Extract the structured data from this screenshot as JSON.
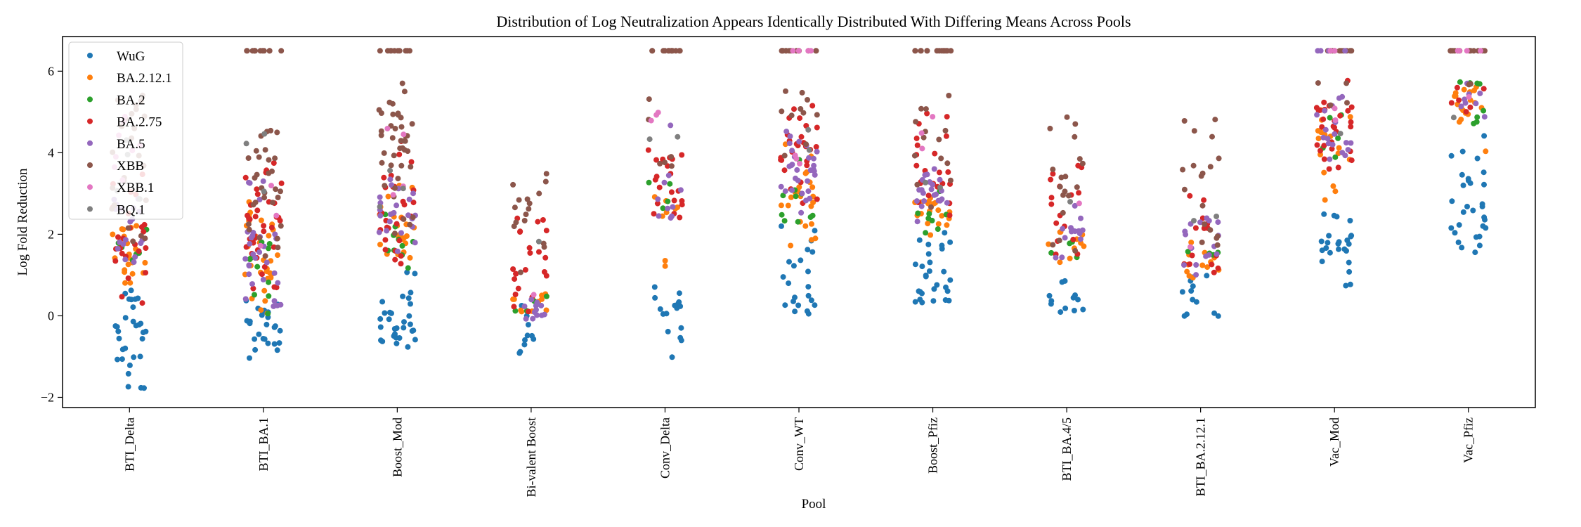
{
  "chart_data": {
    "type": "scatter",
    "title": "Distribution of Log Neutralization Appears Identically Distributed With Differing Means Across Pools",
    "xlabel": "Pool",
    "ylabel": "Log Fold Reduction",
    "ylim": [
      -2.25,
      6.85
    ],
    "yticks": [
      -2,
      0,
      2,
      4,
      6
    ],
    "ytick_labels": [
      "−2",
      "0",
      "2",
      "4",
      "6"
    ],
    "categories": [
      "BTI_Delta",
      "BTI_BA.1",
      "Boost_Mod",
      "Bi-valent Boost",
      "Conv_Delta",
      "Conv_WT",
      "Boost_Pfiz",
      "BTI_BA.4/5",
      "BTI_BA.2.12.1",
      "Vac_Mod",
      "Vac_Pfiz"
    ],
    "legend_position": "top-left",
    "grid": false,
    "series": [
      {
        "name": "WuG",
        "color": "#1f77b4",
        "groups": [
          {
            "mean": -0.3,
            "sd": 0.8,
            "n": 30,
            "min": -1.85,
            "max": 0.8
          },
          {
            "mean": -0.3,
            "sd": 0.45,
            "n": 25,
            "min": -1.1,
            "max": 0.4
          },
          {
            "mean": 0.1,
            "sd": 0.55,
            "n": 30,
            "min": -0.9,
            "max": 1.1
          },
          {
            "mean": -0.6,
            "sd": 0.5,
            "n": 10,
            "min": -1.5,
            "max": 0.3
          },
          {
            "mean": 0.1,
            "sd": 0.5,
            "n": 16,
            "min": -1.05,
            "max": 1.2
          },
          {
            "mean": 0.9,
            "sd": 0.8,
            "n": 22,
            "min": -0.05,
            "max": 2.4
          },
          {
            "mean": 1.0,
            "sd": 0.6,
            "n": 28,
            "min": 0.3,
            "max": 2.2
          },
          {
            "mean": 0.6,
            "sd": 0.4,
            "n": 12,
            "min": -0.05,
            "max": 1.2
          },
          {
            "mean": 0.4,
            "sd": 0.4,
            "n": 12,
            "min": -0.1,
            "max": 1.0
          },
          {
            "mean": 1.6,
            "sd": 0.55,
            "n": 24,
            "min": 0.65,
            "max": 3.3
          },
          {
            "mean": 2.7,
            "sd": 0.8,
            "n": 30,
            "min": 1.55,
            "max": 4.6
          }
        ]
      },
      {
        "name": "BA.2.12.1",
        "color": "#ff7f0e",
        "groups": [
          {
            "mean": 1.5,
            "sd": 0.5,
            "n": 22,
            "min": 0.6,
            "max": 2.6
          },
          {
            "mean": 1.3,
            "sd": 0.8,
            "n": 30,
            "min": 0.0,
            "max": 3.0
          },
          {
            "mean": 2.3,
            "sd": 0.5,
            "n": 22,
            "min": 1.4,
            "max": 3.3
          },
          {
            "mean": 0.4,
            "sd": 0.4,
            "n": 10,
            "min": -0.3,
            "max": 1.2
          },
          {
            "mean": 2.6,
            "sd": 0.5,
            "n": 8,
            "min": 1.2,
            "max": 3.3
          },
          {
            "mean": 2.8,
            "sd": 0.7,
            "n": 22,
            "min": 1.7,
            "max": 4.5
          },
          {
            "mean": 2.4,
            "sd": 0.4,
            "n": 18,
            "min": 1.7,
            "max": 3.3
          },
          {
            "mean": 1.6,
            "sd": 0.3,
            "n": 10,
            "min": 1.1,
            "max": 2.2
          },
          {
            "mean": 1.3,
            "sd": 0.4,
            "n": 12,
            "min": 0.9,
            "max": 2.1
          },
          {
            "mean": 4.0,
            "sd": 0.7,
            "n": 16,
            "min": 2.8,
            "max": 5.2
          },
          {
            "mean": 5.2,
            "sd": 0.4,
            "n": 18,
            "min": 4.0,
            "max": 5.7
          }
        ]
      },
      {
        "name": "BA.2",
        "color": "#2ca02c",
        "groups": [
          {
            "mean": 1.5,
            "sd": 0.5,
            "n": 6,
            "min": 0.8,
            "max": 2.3
          },
          {
            "mean": 1.0,
            "sd": 0.8,
            "n": 10,
            "min": 0.0,
            "max": 2.8
          },
          {
            "mean": 2.0,
            "sd": 0.5,
            "n": 10,
            "min": 1.0,
            "max": 2.8
          },
          {
            "mean": 0.3,
            "sd": 0.2,
            "n": 4,
            "min": 0.1,
            "max": 0.5
          },
          {
            "mean": 3.0,
            "sd": 0.3,
            "n": 4,
            "min": 2.6,
            "max": 3.3
          },
          {
            "mean": 3.0,
            "sd": 0.8,
            "n": 10,
            "min": 2.2,
            "max": 5.75
          },
          {
            "mean": 2.5,
            "sd": 0.4,
            "n": 8,
            "min": 2.0,
            "max": 3.2
          },
          {
            "mean": 1.7,
            "sd": 0.3,
            "n": 4,
            "min": 1.4,
            "max": 2.0
          },
          {
            "mean": 1.3,
            "sd": 0.3,
            "n": 4,
            "min": 1.2,
            "max": 1.6
          },
          {
            "mean": 4.3,
            "sd": 0.5,
            "n": 5,
            "min": 3.7,
            "max": 5.0
          },
          {
            "mean": 5.3,
            "sd": 0.4,
            "n": 8,
            "min": 4.6,
            "max": 5.75
          }
        ]
      },
      {
        "name": "BA.2.75",
        "color": "#d62728",
        "groups": [
          {
            "mean": 1.6,
            "sd": 0.8,
            "n": 24,
            "min": 0.3,
            "max": 3.5
          },
          {
            "mean": 2.0,
            "sd": 1.0,
            "n": 35,
            "min": 0.3,
            "max": 4.0
          },
          {
            "mean": 2.5,
            "sd": 0.8,
            "n": 30,
            "min": 1.2,
            "max": 4.8
          },
          {
            "mean": 1.4,
            "sd": 0.8,
            "n": 22,
            "min": 0.0,
            "max": 3.0
          },
          {
            "mean": 3.3,
            "sd": 0.8,
            "n": 20,
            "min": 2.4,
            "max": 4.1
          },
          {
            "mean": 4.0,
            "sd": 0.8,
            "n": 26,
            "min": 2.2,
            "max": 5.5
          },
          {
            "mean": 3.5,
            "sd": 0.8,
            "n": 22,
            "min": 2.0,
            "max": 5.2
          },
          {
            "mean": 2.6,
            "sd": 0.9,
            "n": 16,
            "min": 1.3,
            "max": 4.4
          },
          {
            "mean": 2.3,
            "sd": 1.0,
            "n": 14,
            "min": 1.0,
            "max": 4.3
          },
          {
            "mean": 4.8,
            "sd": 0.6,
            "n": 28,
            "min": 3.5,
            "max": 5.8
          },
          {
            "mean": 5.4,
            "sd": 0.3,
            "n": 6,
            "min": 4.5,
            "max": 5.7
          }
        ]
      },
      {
        "name": "BA.5",
        "color": "#9467bd",
        "groups": [
          {
            "mean": 2.0,
            "sd": 0.6,
            "n": 18,
            "min": 0.8,
            "max": 3.0
          },
          {
            "mean": 1.8,
            "sd": 0.9,
            "n": 30,
            "min": 0.2,
            "max": 4.3
          },
          {
            "mean": 2.4,
            "sd": 0.5,
            "n": 22,
            "min": 1.5,
            "max": 3.5
          },
          {
            "mean": 0.3,
            "sd": 0.3,
            "n": 12,
            "min": -0.1,
            "max": 0.8
          },
          {
            "mean": 3.0,
            "sd": 0.7,
            "n": 10,
            "min": 2.4,
            "max": 5.1
          },
          {
            "mean": 3.4,
            "sd": 0.5,
            "n": 30,
            "min": 2.2,
            "max": 4.6
          },
          {
            "mean": 3.0,
            "sd": 0.4,
            "n": 22,
            "min": 2.2,
            "max": 4.0
          },
          {
            "mean": 1.9,
            "sd": 0.4,
            "n": 14,
            "min": 1.4,
            "max": 2.8
          },
          {
            "mean": 1.8,
            "sd": 0.4,
            "n": 16,
            "min": 1.0,
            "max": 2.5
          },
          {
            "mean": 4.6,
            "sd": 0.5,
            "n": 18,
            "min": 3.6,
            "max": 5.5
          },
          {
            "mean": 5.3,
            "sd": 0.3,
            "n": 8,
            "min": 4.8,
            "max": 5.7
          }
        ]
      },
      {
        "name": "XBB",
        "color": "#8c564b",
        "groups": [
          {
            "mean": 3.8,
            "sd": 1.2,
            "n": 24,
            "min": 1.8,
            "max": 5.6
          },
          {
            "mean": 3.0,
            "sd": 0.9,
            "n": 30,
            "min": 0.5,
            "max": 5.6
          },
          {
            "mean": 4.0,
            "sd": 1.1,
            "n": 40,
            "min": 1.5,
            "max": 5.8
          },
          {
            "mean": 2.0,
            "sd": 1.0,
            "n": 16,
            "min": 0.4,
            "max": 3.6
          },
          {
            "mean": 4.4,
            "sd": 0.8,
            "n": 6,
            "min": 3.5,
            "max": 5.7
          },
          {
            "mean": 4.9,
            "sd": 0.7,
            "n": 10,
            "min": 3.8,
            "max": 5.6
          },
          {
            "mean": 4.2,
            "sd": 0.9,
            "n": 14,
            "min": 2.6,
            "max": 5.7
          },
          {
            "mean": 3.4,
            "sd": 1.2,
            "n": 18,
            "min": 1.3,
            "max": 5.0
          },
          {
            "mean": 3.2,
            "sd": 1.4,
            "n": 18,
            "min": 1.0,
            "max": 4.9
          },
          {
            "mean": 5.5,
            "sd": 0.3,
            "n": 4,
            "min": 5.0,
            "max": 5.8
          },
          {
            "mean": 5.6,
            "sd": 0.1,
            "n": 2,
            "min": 5.5,
            "max": 5.7
          }
        ]
      },
      {
        "name": "XBB.1",
        "color": "#e377c2",
        "groups": [
          {
            "mean": 4.2,
            "sd": 0.7,
            "n": 8,
            "min": 3.0,
            "max": 5.3
          },
          {
            "mean": 3.2,
            "sd": 1.0,
            "n": 3,
            "min": 1.5,
            "max": 4.8
          },
          {
            "mean": 3.5,
            "sd": 1.0,
            "n": 4,
            "min": 2.0,
            "max": 4.6
          },
          {
            "mean": 1.0,
            "sd": 0.5,
            "n": 1,
            "min": 0.5,
            "max": 1.5
          },
          {
            "mean": 4.8,
            "sd": 0.3,
            "n": 3,
            "min": 4.2,
            "max": 5.2
          },
          {
            "mean": 4.0,
            "sd": 0.5,
            "n": 3,
            "min": 3.6,
            "max": 4.7
          },
          {
            "mean": 4.5,
            "sd": 0.5,
            "n": 3,
            "min": 4.0,
            "max": 5.0
          },
          {
            "mean": 2.7,
            "sd": 0.3,
            "n": 1,
            "min": 2.4,
            "max": 3.0
          },
          {
            "mean": 2.0,
            "sd": 0.5,
            "n": 1,
            "min": 1.5,
            "max": 2.5
          },
          {
            "mean": 5.0,
            "sd": 0.4,
            "n": 2,
            "min": 4.5,
            "max": 5.4
          },
          {
            "mean": 5.4,
            "sd": 0.2,
            "n": 1,
            "min": 5.2,
            "max": 5.6
          }
        ]
      },
      {
        "name": "BQ.1",
        "color": "#7f7f7f",
        "groups": [
          {
            "mean": 3.5,
            "sd": 0.8,
            "n": 4,
            "min": 2.5,
            "max": 4.5
          },
          {
            "mean": 3.0,
            "sd": 1.0,
            "n": 3,
            "min": 1.5,
            "max": 4.5
          },
          {
            "mean": 3.0,
            "sd": 0.8,
            "n": 3,
            "min": 2.0,
            "max": 4.0
          },
          {
            "mean": 1.5,
            "sd": 0.5,
            "n": 1,
            "min": 1.0,
            "max": 2.0
          },
          {
            "mean": 4.2,
            "sd": 0.2,
            "n": 2,
            "min": 4.0,
            "max": 4.4
          },
          {
            "mean": 4.2,
            "sd": 0.4,
            "n": 2,
            "min": 3.8,
            "max": 4.6
          },
          {
            "mean": 3.5,
            "sd": 0.4,
            "n": 2,
            "min": 3.0,
            "max": 4.0
          },
          {
            "mean": 2.5,
            "sd": 0.3,
            "n": 1,
            "min": 2.2,
            "max": 2.8
          },
          {
            "mean": 2.6,
            "sd": 0.3,
            "n": 2,
            "min": 2.3,
            "max": 2.9
          },
          {
            "mean": 4.5,
            "sd": 0.3,
            "n": 1,
            "min": 4.2,
            "max": 4.8
          },
          {
            "mean": 5.0,
            "sd": 0.2,
            "n": 1,
            "min": 4.8,
            "max": 5.2
          }
        ]
      }
    ],
    "ceiling": {
      "value": 6.5,
      "points": [
        {
          "category": "BTI_BA.1",
          "series": "XBB",
          "n": 12
        },
        {
          "category": "Boost_Mod",
          "series": "XBB",
          "n": 10
        },
        {
          "category": "Conv_Delta",
          "series": "XBB",
          "n": 12
        },
        {
          "category": "Conv_WT",
          "series": "XBB",
          "n": 14
        },
        {
          "category": "Conv_WT",
          "series": "XBB.1",
          "n": 4
        },
        {
          "category": "Boost_Pfiz",
          "series": "XBB",
          "n": 14
        },
        {
          "category": "Vac_Mod",
          "series": "XBB",
          "n": 10
        },
        {
          "category": "Vac_Mod",
          "series": "BA.5",
          "n": 4
        },
        {
          "category": "Vac_Mod",
          "series": "XBB.1",
          "n": 2
        },
        {
          "category": "Vac_Pfiz",
          "series": "XBB",
          "n": 12
        },
        {
          "category": "Vac_Pfiz",
          "series": "XBB.1",
          "n": 4
        }
      ]
    }
  }
}
